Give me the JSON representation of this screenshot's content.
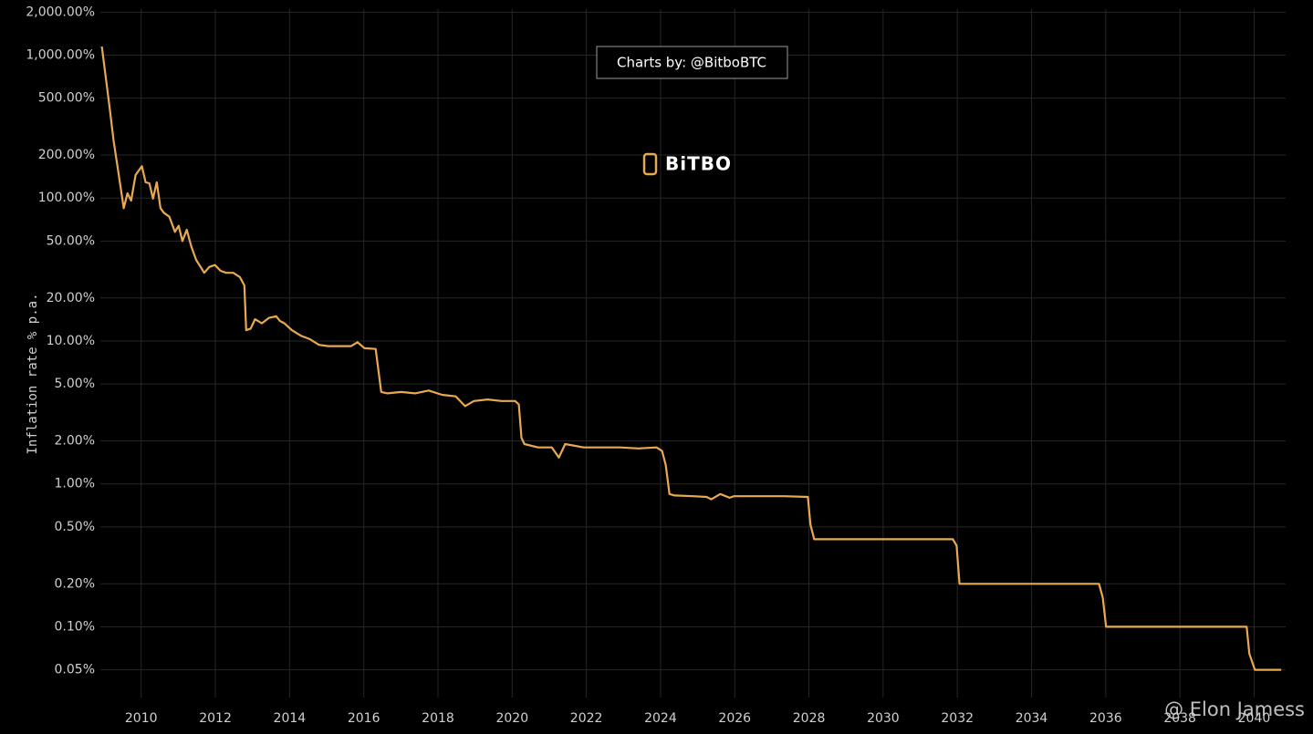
{
  "chart_data": {
    "type": "line",
    "y_axis_label": "Inflation rate % p.a.",
    "annotation": "Charts by: @BitboBTC",
    "logo": "BiTBO",
    "watermark": "@ Elon Jamess",
    "log_scale_y": true,
    "grid": true,
    "xlim": [
      2008.9,
      2040.8
    ],
    "ylim": [
      0.032,
      2100
    ],
    "xticks": [
      2010,
      2012,
      2014,
      2016,
      2018,
      2020,
      2022,
      2024,
      2026,
      2028,
      2030,
      2032,
      2034,
      2036,
      2038,
      2040
    ],
    "yticks": [
      {
        "value": 2000,
        "label": "2,000.00%"
      },
      {
        "value": 1000,
        "label": "1,000.00%"
      },
      {
        "value": 500,
        "label": "500.00%"
      },
      {
        "value": 200,
        "label": "200.00%"
      },
      {
        "value": 100,
        "label": "100.00%"
      },
      {
        "value": 50,
        "label": "50.00%"
      },
      {
        "value": 20,
        "label": "20.00%"
      },
      {
        "value": 10,
        "label": "10.00%"
      },
      {
        "value": 5,
        "label": "5.00%"
      },
      {
        "value": 2,
        "label": "2.00%"
      },
      {
        "value": 1,
        "label": "1.00%"
      },
      {
        "value": 0.5,
        "label": "0.50%"
      },
      {
        "value": 0.2,
        "label": "0.20%"
      },
      {
        "value": 0.1,
        "label": "0.10%"
      },
      {
        "value": 0.05,
        "label": "0.05%"
      }
    ],
    "series": [
      {
        "name": "Inflation rate",
        "color": "#e8a951",
        "x": [
          2008.94,
          2009.14,
          2009.26,
          2009.39,
          2009.53,
          2009.63,
          2009.73,
          2009.85,
          2010.02,
          2010.12,
          2010.22,
          2010.32,
          2010.42,
          2010.52,
          2010.61,
          2010.76,
          2010.91,
          2011.01,
          2011.11,
          2011.23,
          2011.35,
          2011.48,
          2011.6,
          2011.7,
          2011.84,
          2011.99,
          2012.14,
          2012.29,
          2012.48,
          2012.66,
          2012.78,
          2012.83,
          2012.95,
          2013.07,
          2013.25,
          2013.44,
          2013.64,
          2013.74,
          2013.86,
          2014.06,
          2014.3,
          2014.55,
          2014.79,
          2015.04,
          2015.41,
          2015.66,
          2015.83,
          2016.02,
          2016.32,
          2016.39,
          2016.47,
          2016.64,
          2017.01,
          2017.38,
          2017.75,
          2018.11,
          2018.48,
          2018.73,
          2018.97,
          2019.34,
          2019.71,
          2020.08,
          2020.18,
          2020.25,
          2020.33,
          2020.7,
          2021.07,
          2021.26,
          2021.43,
          2021.93,
          2022.42,
          2022.91,
          2023.4,
          2023.89,
          2024.04,
          2024.14,
          2024.24,
          2024.38,
          2024.88,
          2025.24,
          2025.37,
          2025.61,
          2025.86,
          2025.98,
          2027.33,
          2027.97,
          2028.04,
          2028.14,
          2028.76,
          2031.88,
          2031.98,
          2032.06,
          2035.82,
          2035.92,
          2036.01,
          2039.8,
          2039.87,
          2040.02,
          2040.73
        ],
        "values": [
          1150,
          447,
          249,
          149,
          85,
          108,
          96,
          145,
          167,
          129,
          127,
          99,
          129,
          85,
          79,
          74,
          58,
          64,
          50,
          60,
          46,
          37,
          33,
          30,
          33,
          34,
          31,
          30,
          30,
          28,
          24.5,
          11.9,
          12.2,
          14.2,
          13.3,
          14.5,
          14.9,
          13.8,
          13.3,
          11.9,
          10.9,
          10.3,
          9.4,
          9.2,
          9.2,
          9.2,
          9.8,
          8.9,
          8.8,
          6.4,
          4.4,
          4.3,
          4.4,
          4.3,
          4.5,
          4.2,
          4.1,
          3.5,
          3.8,
          3.9,
          3.8,
          3.8,
          3.6,
          2.1,
          1.9,
          1.8,
          1.8,
          1.53,
          1.9,
          1.8,
          1.8,
          1.8,
          1.77,
          1.8,
          1.7,
          1.36,
          0.85,
          0.83,
          0.82,
          0.81,
          0.78,
          0.85,
          0.8,
          0.82,
          0.82,
          0.81,
          0.52,
          0.41,
          0.41,
          0.41,
          0.37,
          0.2,
          0.2,
          0.16,
          0.1,
          0.1,
          0.065,
          0.05,
          0.05
        ]
      }
    ]
  }
}
